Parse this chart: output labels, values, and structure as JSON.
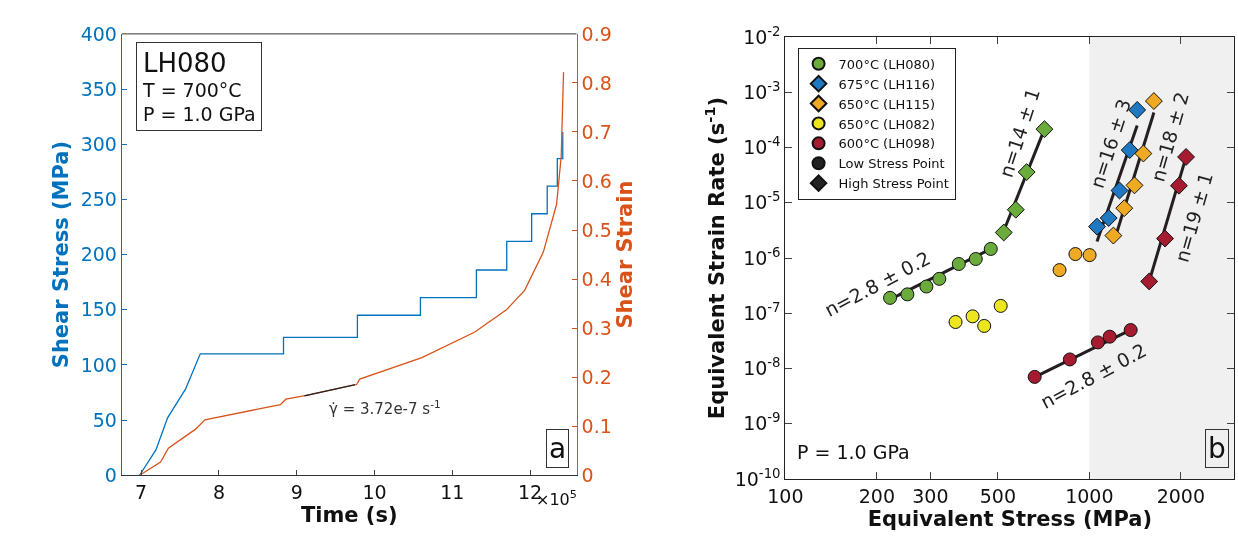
{
  "chart_data": [
    {
      "type": "line",
      "xlabel": "Time (s)",
      "ylabel": "Shear Stress (MPa)",
      "y2label": "Shear Strain",
      "xlim": [
        6.75,
        12.6
      ],
      "xticks": [
        7,
        8,
        9,
        10,
        11,
        12
      ],
      "ylim": [
        0,
        400
      ],
      "yticks": [
        0,
        50,
        100,
        150,
        200,
        250,
        300,
        350,
        400
      ],
      "y2lim": [
        0,
        0.9
      ],
      "y2ticks": [
        0,
        0.1,
        0.2,
        0.3,
        0.4,
        0.5,
        0.6,
        0.7,
        0.8,
        0.9
      ],
      "grid": false,
      "legend": false,
      "series": [
        {
          "type": "step",
          "color": "#0072bd",
          "x": [
            6.98,
            7.19,
            7.34,
            7.57,
            7.76,
            8.83,
            8.83,
            9.78,
            9.78,
            10.59,
            10.59,
            11.31,
            11.31,
            11.7,
            11.7,
            12.02,
            12.02,
            12.22,
            12.22,
            12.35,
            12.35,
            12.42,
            12.42
          ],
          "values": [
            0,
            23,
            52,
            78,
            110,
            110,
            125,
            125,
            145,
            145,
            161,
            161,
            186,
            186,
            212,
            212,
            237,
            237,
            262,
            262,
            287,
            287,
            311
          ]
        },
        {
          "color": "#d95319",
          "axis": "y2",
          "x": [
            6.98,
            7.25,
            7.35,
            7.7,
            7.82,
            8.79,
            8.86,
            9.09,
            9.77,
            9.81,
            10.61,
            11.29,
            11.7,
            11.93,
            12.17,
            12.34,
            12.4,
            12.43
          ],
          "values": [
            0,
            0.027,
            0.055,
            0.094,
            0.113,
            0.144,
            0.155,
            0.162,
            0.185,
            0.196,
            0.24,
            0.292,
            0.338,
            0.377,
            0.455,
            0.552,
            0.65,
            0.822
          ]
        },
        {
          "color": "#222222",
          "axis": "y2",
          "x": [
            9.1,
            9.75
          ],
          "values": [
            0.162,
            0.185
          ]
        }
      ],
      "annotations": [
        "LH080",
        "T = 700°C",
        "P = 1.0 GPa",
        "γ̇ = 3.72e-7 s$^{-1}$",
        "a",
        "×10$^{5}$"
      ]
    },
    {
      "type": "scatter",
      "xlabel": "Equivalent Stress (MPa)",
      "ylabel": "Equivalent Strain Rate (s$^{-1}$)",
      "log": "xy",
      "xlim": [
        100,
        3000
      ],
      "xticks": [
        100,
        200,
        300,
        500,
        1000,
        2000
      ],
      "ylim": [
        1e-10,
        0.01
      ],
      "yticks": [
        {
          "value": 1e-10,
          "label": "10$^{-10}$"
        },
        {
          "value": 1e-09,
          "label": "10$^{-9}$"
        },
        {
          "value": 1e-08,
          "label": "10$^{-8}$"
        },
        {
          "value": 1e-07,
          "label": "10$^{-7}$"
        },
        {
          "value": 1e-06,
          "label": "10$^{-6}$"
        },
        {
          "value": 1e-05,
          "label": "10$^{-5}$"
        },
        {
          "value": 0.0001,
          "label": "10$^{-4}$"
        },
        {
          "value": 0.001,
          "label": "10$^{-3}$"
        },
        {
          "value": 0.01,
          "label": "10$^{-2}$"
        }
      ],
      "grid": false,
      "legend": "top left",
      "bands": [
        {
          "axis": "x",
          "from": 1000,
          "to": 3000,
          "color": "#f0f0f0"
        }
      ],
      "series": [
        {
          "type": "line",
          "color": "#231f20",
          "x": [
            222,
            474
          ],
          "values": [
            1.8e-07,
            1.46e-06
          ]
        },
        {
          "type": "line",
          "color": "#231f20",
          "x": [
            515,
            715
          ],
          "values": [
            2.5e-06,
            0.00023
          ]
        },
        {
          "type": "line",
          "color": "#231f20",
          "x": [
            1060,
            1437
          ],
          "values": [
            2e-06,
            0.00025
          ]
        },
        {
          "type": "line",
          "color": "#231f20",
          "x": [
            1228,
            1631
          ],
          "values": [
            2.75e-06,
            0.00043
          ]
        },
        {
          "type": "line",
          "color": "#231f20",
          "x": [
            1574,
            2081
          ],
          "values": [
            3.77e-07,
            6.8e-05
          ]
        },
        {
          "type": "line",
          "color": "#231f20",
          "x": [
            661,
            1368
          ],
          "values": [
            7e-09,
            5e-08
          ]
        },
        {
          "name": "700°C (LH080)",
          "color": "#6aab3c",
          "marker": "circle",
          "x": [
            221,
            252,
            291,
            321,
            372,
            423,
            474
          ],
          "values": [
            1.9e-07,
            2.2e-07,
            3.05e-07,
            4.2e-07,
            7.8e-07,
            9.6e-07,
            1.46e-06
          ]
        },
        {
          "color": "#6aab3c",
          "marker": "diamond",
          "x": [
            523,
            573,
            622,
            712
          ],
          "values": [
            2.9e-06,
            7.5e-06,
            3.6e-05,
            0.000215
          ]
        },
        {
          "name": "675°C (LH116)",
          "color": "#1e78c2",
          "marker": "diamond",
          "x": [
            1060,
            1158,
            1257,
            1358,
            1437
          ],
          "values": [
            3.7e-06,
            5.3e-06,
            1.67e-05,
            9e-05,
            0.00048
          ]
        },
        {
          "name": "650°C (LH115)",
          "color": "#eeaa22",
          "marker": "diamond",
          "x": [
            1200,
            1303,
            1408,
            1506,
            1631
          ],
          "values": [
            2.55e-06,
            8e-06,
            2.07e-05,
            7.8e-05,
            0.000695
          ]
        },
        {
          "color": "#eeaa22",
          "marker": "circle",
          "x": [
            798,
            900,
            1002
          ],
          "values": [
            6.05e-07,
            1.18e-06,
            1.13e-06
          ]
        },
        {
          "name": "650°C (LH082)",
          "color": "#ede51f",
          "marker": "circle",
          "x": [
            363,
            413,
            451,
            511
          ],
          "values": [
            6.95e-08,
            8.8e-08,
            5.9e-08,
            1.36e-07
          ]
        },
        {
          "name": "600°C (LH098)",
          "color": "#a51c30",
          "marker": "circle",
          "x": [
            661,
            863,
            1067,
            1167,
            1368
          ],
          "values": [
            7.05e-09,
            1.46e-08,
            2.97e-08,
            3.77e-08,
            4.97e-08
          ]
        },
        {
          "color": "#a51c30",
          "marker": "diamond",
          "x": [
            1574,
            1775,
            1972,
            2081
          ],
          "values": [
            3.77e-07,
            2.25e-06,
            2.04e-05,
            6.76e-05
          ]
        },
        {
          "name": "Low Stress Point",
          "color": "#222222",
          "marker": "circle"
        },
        {
          "name": "High Stress Point",
          "color": "#222222",
          "marker": "diamond"
        }
      ],
      "annotations": [
        "P = 1.0 GPa",
        "b",
        "n=2.8 ± 0.2",
        "n=14 ± 1",
        "n=16 ± 3",
        "n=18 ± 2",
        "n=19 ± 1",
        "n=2.8 ± 0.2"
      ]
    }
  ]
}
